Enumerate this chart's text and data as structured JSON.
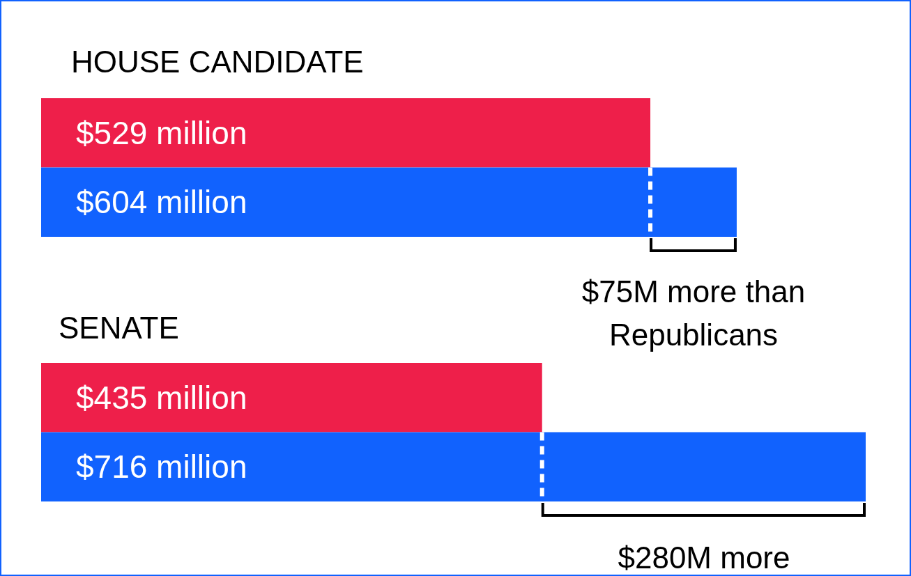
{
  "chart_data": [
    {
      "type": "bar",
      "title": "HOUSE CANDIDATE",
      "orientation": "horizontal",
      "categories": [
        null,
        null
      ],
      "values": [
        529,
        604
      ],
      "colors": [
        "#ee1f4a",
        "#1162fe"
      ],
      "value_labels": [
        "$529 million",
        "$604 million"
      ],
      "annotations": [
        "$75M more than Republicans"
      ]
    },
    {
      "type": "bar",
      "title": "SENATE",
      "orientation": "horizontal",
      "categories": [
        null,
        null
      ],
      "values": [
        435,
        716
      ],
      "colors": [
        "#ee1f4a",
        "#1162fe"
      ],
      "value_labels": [
        "$435 million",
        "$716 million"
      ],
      "annotations": [
        "$280M more"
      ]
    }
  ]
}
